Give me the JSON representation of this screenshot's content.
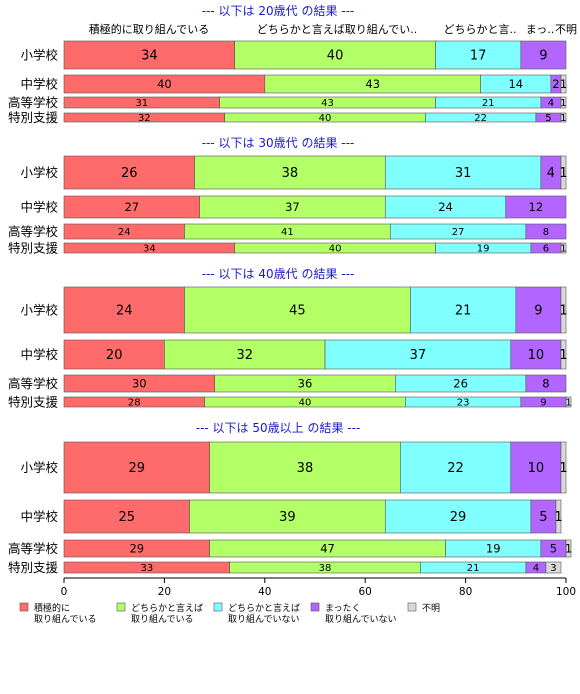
{
  "chart_data": {
    "type": "bar",
    "orientation": "horizontal",
    "stacked": true,
    "normalized": true,
    "xlim": [
      0,
      100
    ],
    "xticks": [
      "0",
      "20",
      "40",
      "60",
      "80",
      "100"
    ],
    "top_headers": [
      "積極的に取り組んでいる",
      "どちらかと言えば取り組んでい..",
      "どちらかと言..",
      "まっ..",
      "不明"
    ],
    "legend": [
      {
        "key": "s1",
        "lines": [
          "積極的に",
          "取り組んでいる"
        ],
        "color": "#ff6b6b"
      },
      {
        "key": "s2",
        "lines": [
          "どちらかと言えば",
          "取り組んでいる"
        ],
        "color": "#b3ff66"
      },
      {
        "key": "s3",
        "lines": [
          "どちらかと言えば",
          "取り組んでいない"
        ],
        "color": "#80ffff"
      },
      {
        "key": "s4",
        "lines": [
          "まったく",
          "取り組んでいない"
        ],
        "color": "#b366ff"
      },
      {
        "key": "s5",
        "lines": [
          "不明"
        ],
        "color": "#d9d9d9"
      }
    ],
    "panels": [
      {
        "title": "--- 以下は 20歳代 の結果 ---",
        "categories": [
          "小学校",
          "中学校",
          "高等学校",
          "特別支援"
        ],
        "rows": [
          [
            34,
            40,
            17,
            9,
            0
          ],
          [
            40,
            43,
            14,
            2,
            1
          ],
          [
            31,
            43,
            21,
            4,
            1
          ],
          [
            32,
            40,
            22,
            5,
            1
          ]
        ]
      },
      {
        "title": "--- 以下は 30歳代 の結果 ---",
        "categories": [
          "小学校",
          "中学校",
          "高等学校",
          "特別支援"
        ],
        "rows": [
          [
            26,
            38,
            31,
            4,
            1
          ],
          [
            27,
            37,
            24,
            12,
            0
          ],
          [
            24,
            41,
            27,
            8,
            0
          ],
          [
            34,
            40,
            19,
            6,
            1
          ]
        ]
      },
      {
        "title": "--- 以下は 40歳代 の結果 ---",
        "categories": [
          "小学校",
          "中学校",
          "高等学校",
          "特別支援"
        ],
        "rows": [
          [
            24,
            45,
            21,
            9,
            1
          ],
          [
            20,
            32,
            37,
            10,
            1
          ],
          [
            30,
            36,
            26,
            8,
            0
          ],
          [
            28,
            40,
            23,
            9,
            1
          ]
        ]
      },
      {
        "title": "--- 以下は 50歳以上 の結果 ---",
        "categories": [
          "小学校",
          "中学校",
          "高等学校",
          "特別支援"
        ],
        "rows": [
          [
            29,
            38,
            22,
            10,
            1
          ],
          [
            25,
            39,
            29,
            5,
            1
          ],
          [
            29,
            47,
            19,
            5,
            1
          ],
          [
            33,
            38,
            21,
            4,
            3
          ]
        ]
      }
    ]
  }
}
